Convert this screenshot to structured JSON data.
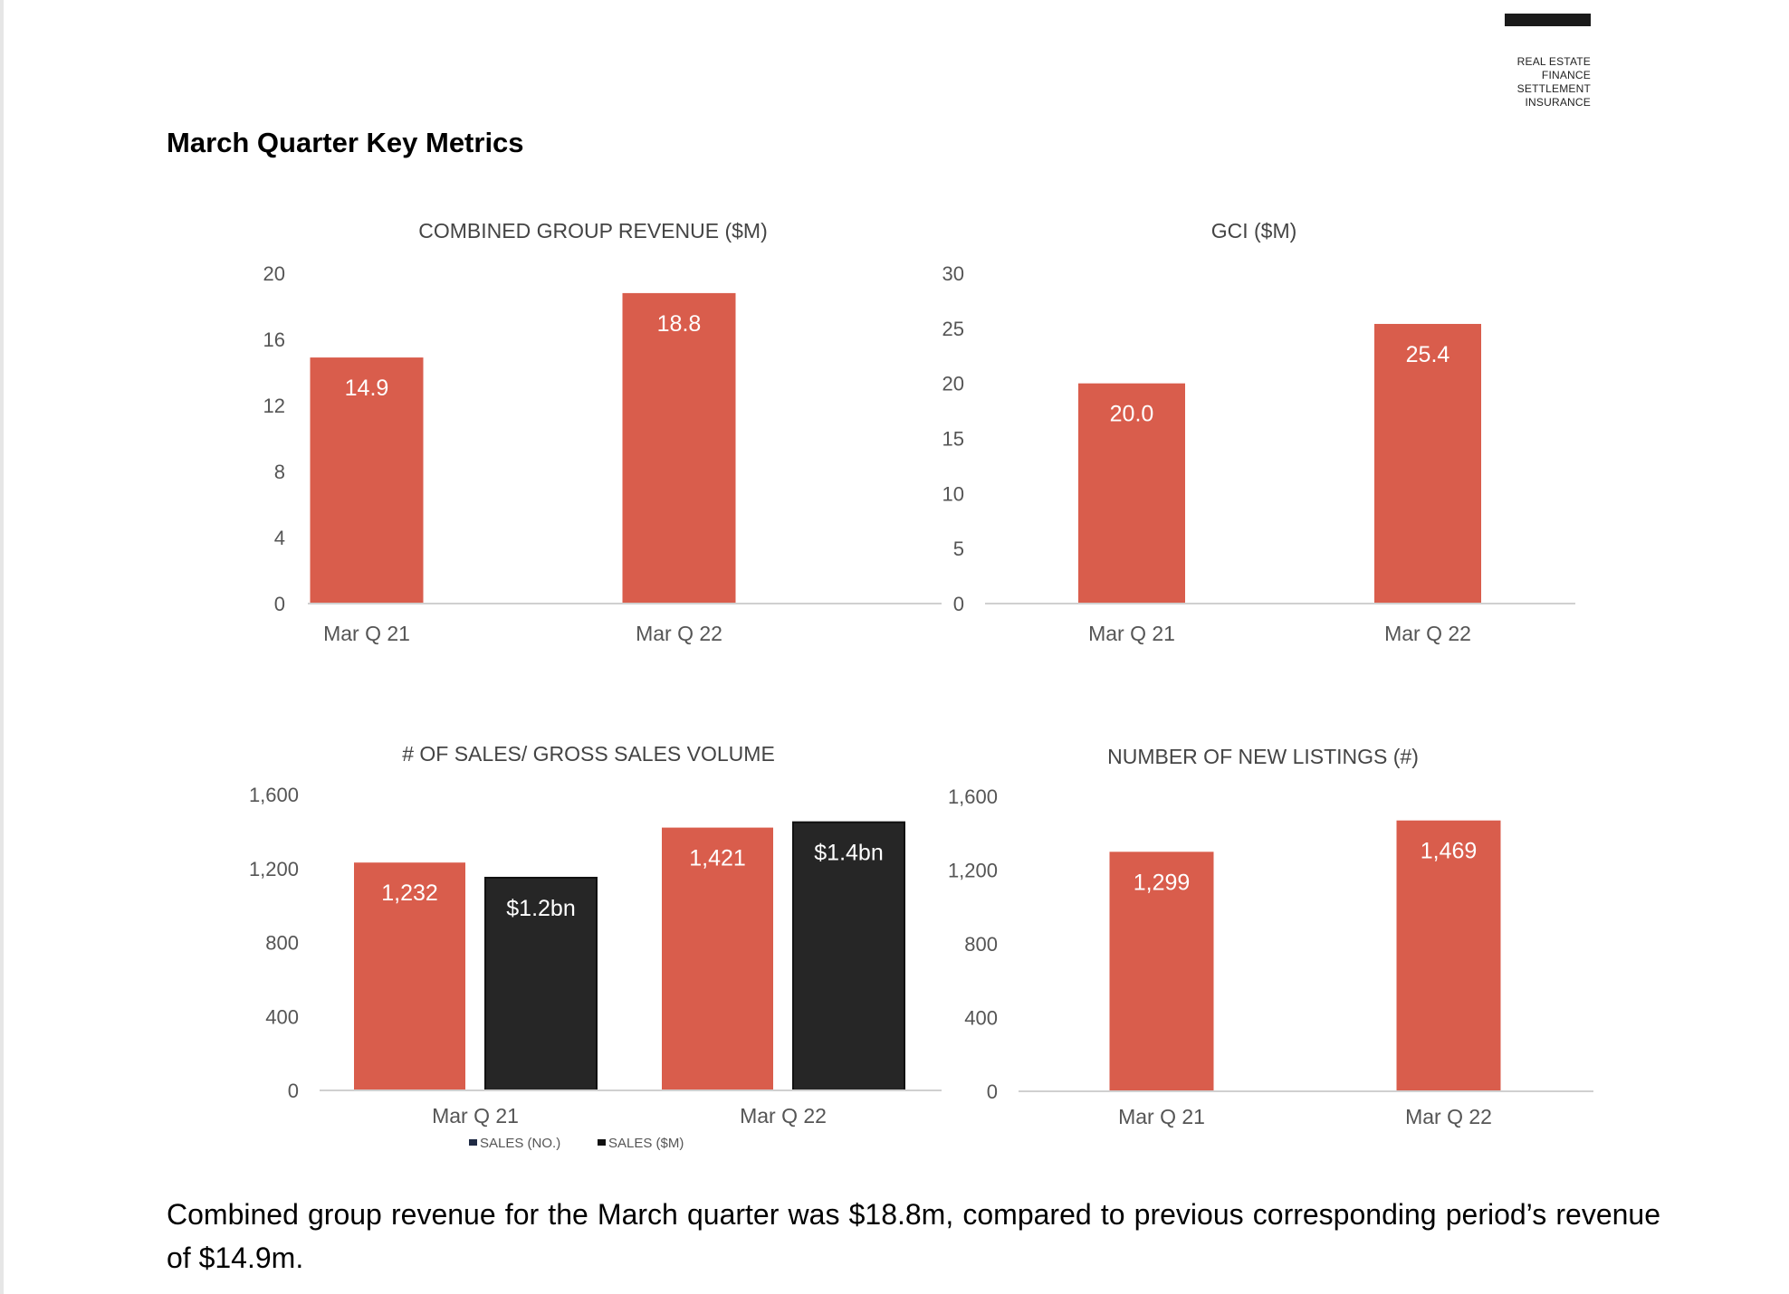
{
  "brand": {
    "lines": [
      "REAL ESTATE",
      "FINANCE",
      "SETTLEMENT",
      "INSURANCE"
    ]
  },
  "page_title": "March Quarter Key Metrics",
  "colors": {
    "red": "#d95d4c",
    "dark": "#262626",
    "axis": "#d0d0d0"
  },
  "chart_data": [
    {
      "id": "revenue",
      "type": "bar",
      "title": "COMBINED GROUP REVENUE ($M)",
      "categories": [
        "Mar Q 21",
        "Mar Q 22"
      ],
      "series": [
        {
          "values": [
            14.9,
            18.8
          ],
          "labels": [
            "14.9",
            "18.8"
          ],
          "color": "#d95d4c"
        }
      ],
      "yticks": [
        "0",
        "4",
        "8",
        "12",
        "16",
        "20"
      ],
      "ylim": [
        0,
        20
      ],
      "grid": false
    },
    {
      "id": "gci",
      "type": "bar",
      "title": "GCI ($M)",
      "categories": [
        "Mar Q 21",
        "Mar Q 22"
      ],
      "series": [
        {
          "values": [
            20.0,
            25.4
          ],
          "labels": [
            "20.0",
            "25.4"
          ],
          "color": "#d95d4c"
        }
      ],
      "yticks": [
        "0",
        "5",
        "10",
        "15",
        "20",
        "25",
        "30"
      ],
      "ylim": [
        0,
        30
      ],
      "grid": false
    },
    {
      "id": "sales",
      "type": "bar",
      "title": "# OF SALES/ GROSS SALES VOLUME",
      "categories": [
        "Mar Q 21",
        "Mar Q 22"
      ],
      "series": [
        {
          "name": "SALES (NO.)",
          "values": [
            1232,
            1421
          ],
          "labels": [
            "1,232",
            "1,421"
          ],
          "color": "#d95d4c"
        },
        {
          "name": "SALES ($M)",
          "values": [
            1150,
            1450
          ],
          "labels": [
            "$1.2bn",
            "$1.4bn"
          ],
          "color": "#262626"
        }
      ],
      "yticks": [
        "0",
        "400",
        "800",
        "1,200",
        "1,600"
      ],
      "ylim": [
        0,
        1600
      ],
      "legend": "bottom",
      "grid": false
    },
    {
      "id": "listings",
      "type": "bar",
      "title": "NUMBER OF NEW LISTINGS (#)",
      "categories": [
        "Mar Q 21",
        "Mar Q 22"
      ],
      "series": [
        {
          "values": [
            1299,
            1469
          ],
          "labels": [
            "1,299",
            "1,469"
          ],
          "color": "#d95d4c"
        }
      ],
      "yticks": [
        "0",
        "400",
        "800",
        "1,200",
        "1,600"
      ],
      "ylim": [
        0,
        1600
      ],
      "grid": false
    }
  ],
  "summary": "Combined group revenue for the March quarter was $18.8m, compared to previous corresponding period’s revenue of $14.9m."
}
